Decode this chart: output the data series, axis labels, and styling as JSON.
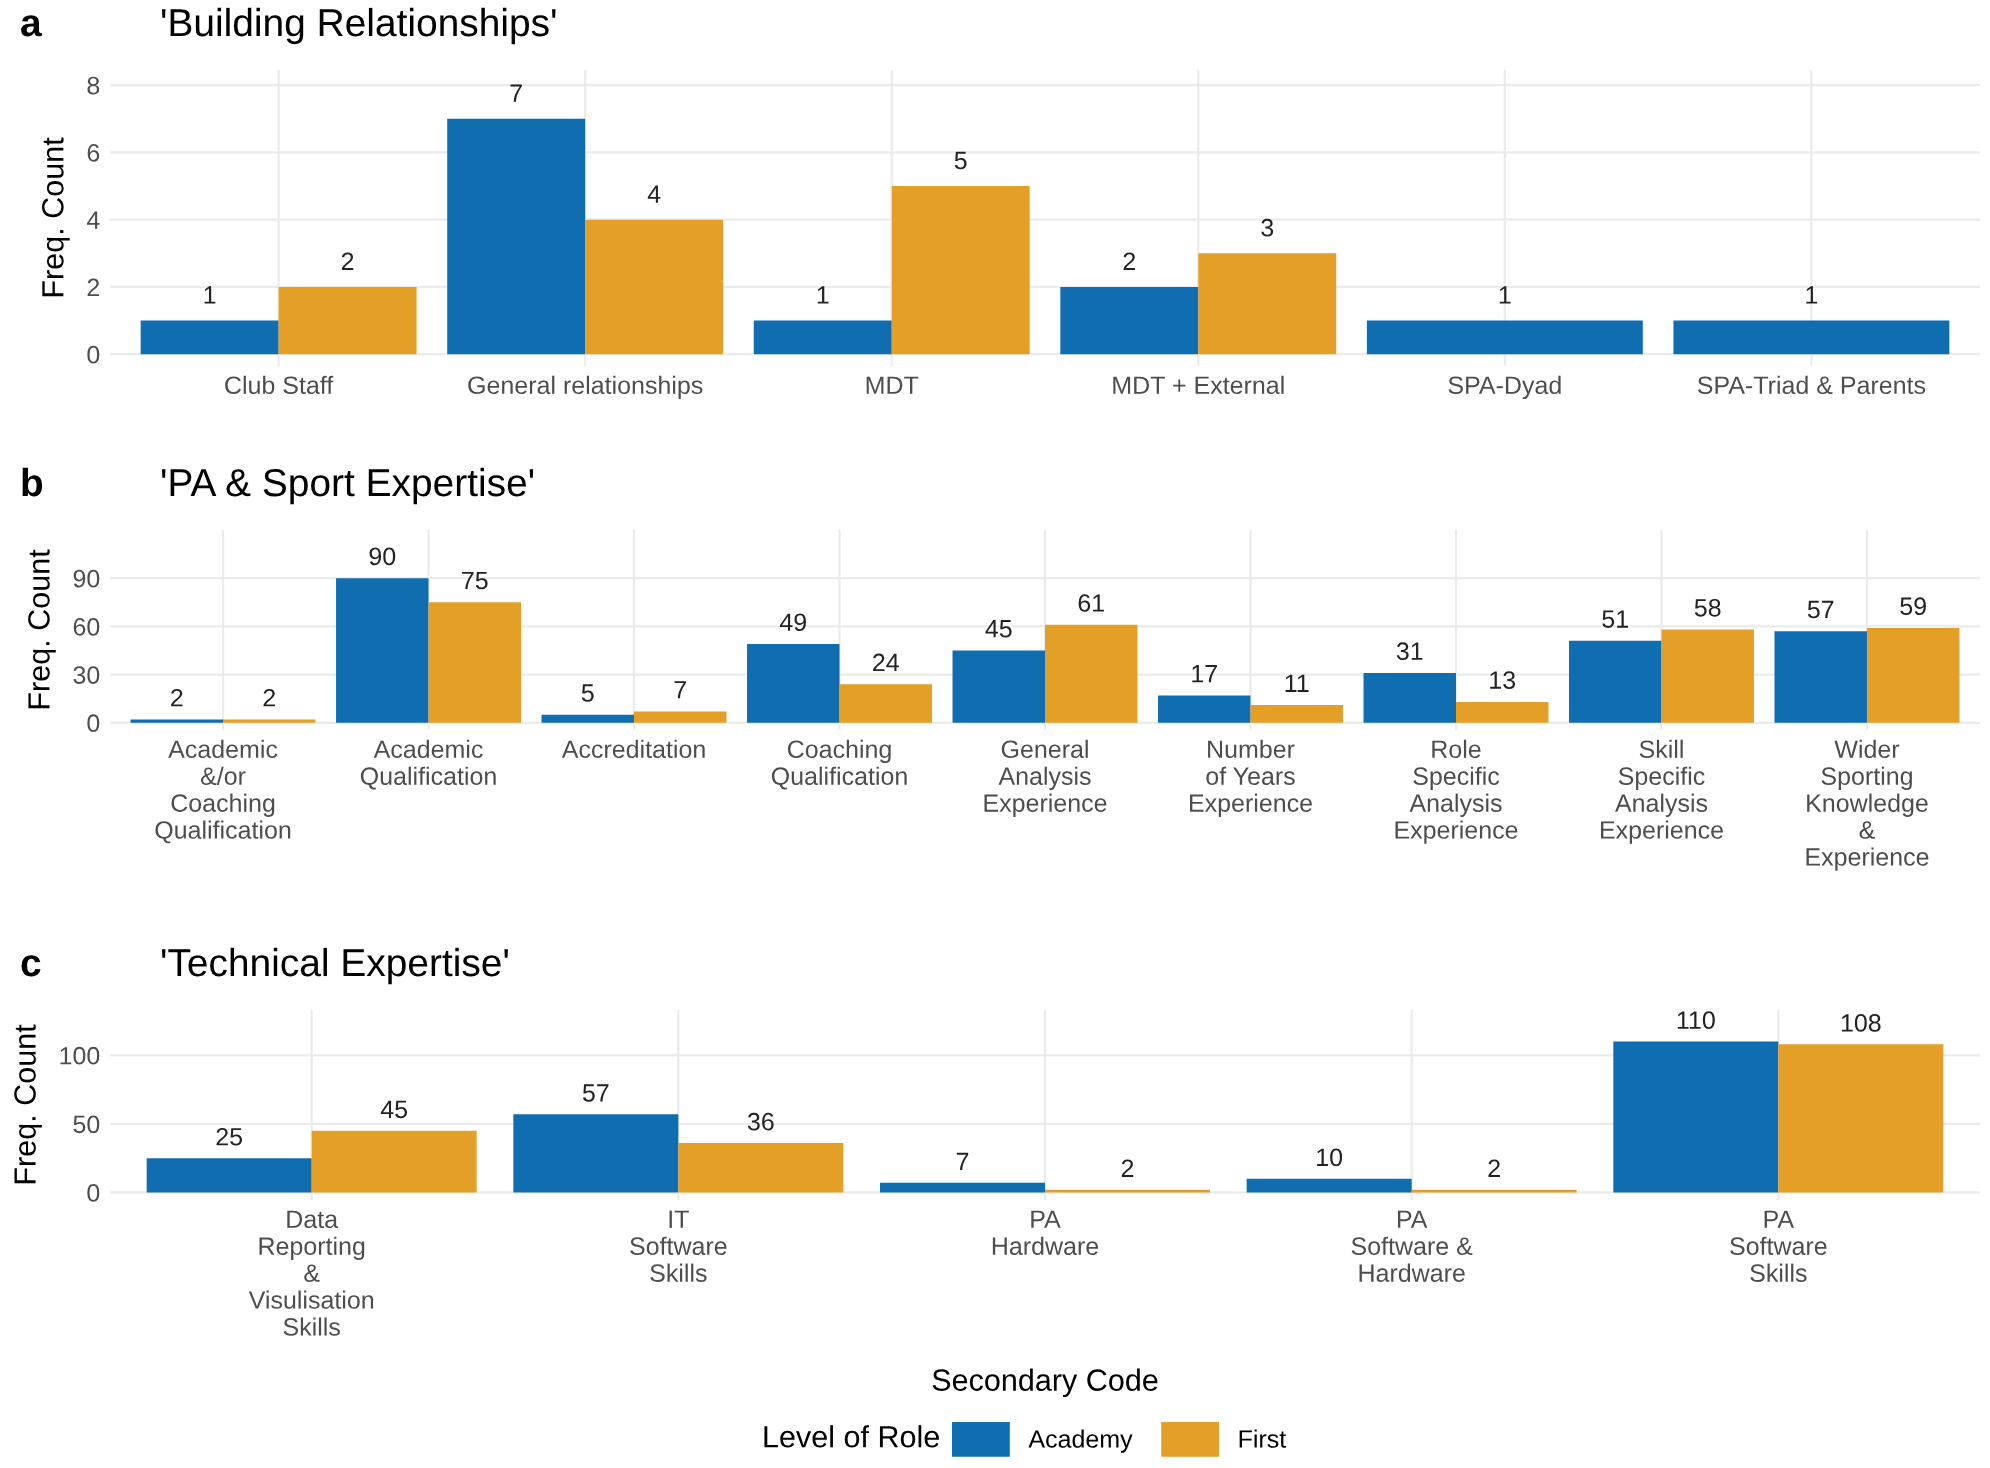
{
  "chart_data": [
    {
      "type": "bar",
      "title": "'Building Relationships'",
      "annotations": [
        "a"
      ],
      "ylabel": "Freq. Count",
      "categories": [
        "Club Staff",
        "General relationships",
        "MDT",
        "MDT + External",
        "SPA-Dyad",
        "SPA-Triad & Parents"
      ],
      "series": [
        {
          "color": "#0f6db0",
          "values": [
            1,
            7,
            1,
            2,
            1,
            1
          ]
        },
        {
          "color": "#e49f27",
          "values": [
            2,
            4,
            5,
            3,
            null,
            null
          ]
        }
      ],
      "ylim": [
        -0.35,
        8.45
      ],
      "yticks": [
        0,
        2,
        4,
        6,
        8
      ],
      "grid": true,
      "data_labels": true
    },
    {
      "type": "bar",
      "title": "'PA & Sport Expertise'",
      "annotations": [
        "b"
      ],
      "ylabel": "Freq. Count",
      "categories": [
        "Academic\n&/or\nCoaching\nQualification",
        "Academic\nQualification",
        "Accreditation",
        "Coaching\nQualification",
        "General\nAnalysis\nExperience",
        "Number\nof Years\nExperience",
        "Role\nSpecific\nAnalysis\nExperience",
        "Skill\nSpecific\nAnalysis\nExperience",
        "Wider\nSporting\nKnowledge\n&\nExperience"
      ],
      "series": [
        {
          "color": "#0f6db0",
          "values": [
            2,
            90,
            5,
            49,
            45,
            17,
            31,
            51,
            57
          ]
        },
        {
          "color": "#e49f27",
          "values": [
            2,
            75,
            7,
            24,
            61,
            11,
            13,
            58,
            59
          ]
        }
      ],
      "ylim": [
        -4.5,
        120
      ],
      "yticks": [
        0,
        30,
        60,
        90
      ],
      "grid": true,
      "data_labels": true
    },
    {
      "type": "bar",
      "title": "'Technical Expertise'",
      "annotations": [
        "c"
      ],
      "ylabel": "Freq. Count",
      "xlabel": "Secondary Code",
      "legend_title": "Level of Role",
      "legend": "bottom",
      "categories": [
        "Data\nReporting\n&\nVisulisation\nSkills",
        "IT\nSoftware\nSkills",
        "PA\nHardware",
        "PA\nSoftware &\nHardware",
        "PA\nSoftware\nSkills"
      ],
      "series": [
        {
          "name": "Academy",
          "color": "#0f6db0",
          "values": [
            25,
            57,
            7,
            10,
            110
          ]
        },
        {
          "name": "First",
          "color": "#e49f27",
          "values": [
            45,
            36,
            2,
            2,
            108
          ]
        }
      ],
      "ylim": [
        -5.5,
        133
      ],
      "yticks": [
        0,
        50,
        100
      ],
      "grid": true,
      "data_labels": true
    }
  ]
}
